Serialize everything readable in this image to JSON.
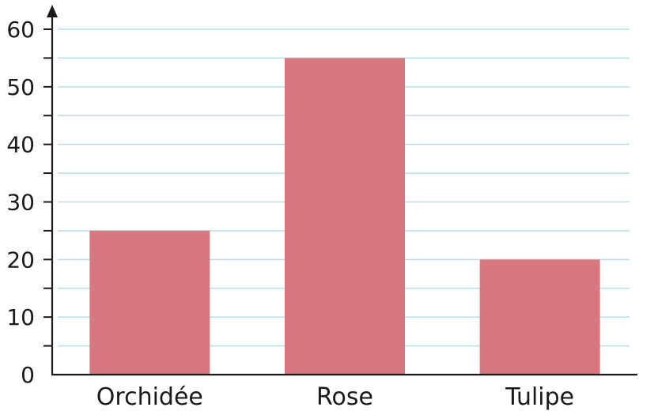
{
  "chart_data": {
    "type": "bar",
    "categories": [
      "Orchidée",
      "Rose",
      "Tulipe"
    ],
    "values": [
      25,
      55,
      20
    ],
    "title": "",
    "xlabel": "",
    "ylabel": "",
    "ylim": [
      0,
      60
    ],
    "yticks": [
      "0",
      "10",
      "20",
      "30",
      "40",
      "50",
      "60"
    ],
    "minor_tick_step": 5,
    "grid": true,
    "legend": "none",
    "colors": {
      "bar": "#d77780",
      "grid": "#b9deea",
      "axis": "#1a1a1a"
    }
  }
}
